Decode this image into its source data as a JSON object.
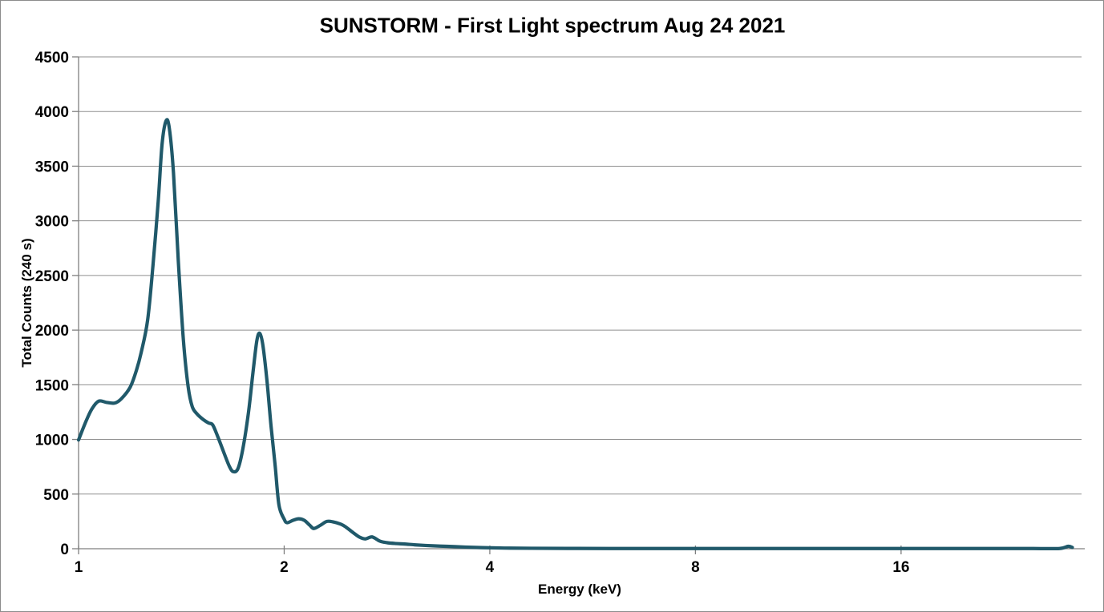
{
  "window": {
    "background": "#ffffff",
    "border_color": "#8c8c8c"
  },
  "chart_data": {
    "type": "line",
    "title": "SUNSTORM - First Light spectrum Aug 24 2021",
    "xlabel": "Energy (keV)",
    "ylabel": "Total Counts (240 s)",
    "x_scale": "log2",
    "x_ticks": [
      1,
      2,
      4,
      8,
      16
    ],
    "xlim": [
      1,
      29.4
    ],
    "ylim": [
      0,
      4500
    ],
    "y_tick_step": 500,
    "grid": "horizontal-major",
    "legend": "none",
    "colors": {
      "line": "#20596a",
      "gridline": "#8f8f8f",
      "axis": "#7f7f7f",
      "text": "#000000"
    },
    "series": [
      {
        "name": "Total counts",
        "points": [
          [
            1.0,
            995
          ],
          [
            1.022,
            1145
          ],
          [
            1.045,
            1275
          ],
          [
            1.07,
            1350
          ],
          [
            1.1,
            1338
          ],
          [
            1.13,
            1333
          ],
          [
            1.155,
            1372
          ],
          [
            1.19,
            1478
          ],
          [
            1.215,
            1630
          ],
          [
            1.235,
            1795
          ],
          [
            1.262,
            2090
          ],
          [
            1.285,
            2590
          ],
          [
            1.308,
            3180
          ],
          [
            1.325,
            3700
          ],
          [
            1.343,
            3915
          ],
          [
            1.358,
            3845
          ],
          [
            1.377,
            3440
          ],
          [
            1.4,
            2620
          ],
          [
            1.424,
            1905
          ],
          [
            1.447,
            1480
          ],
          [
            1.467,
            1300
          ],
          [
            1.49,
            1235
          ],
          [
            1.52,
            1185
          ],
          [
            1.55,
            1150
          ],
          [
            1.572,
            1132
          ],
          [
            1.6,
            1020
          ],
          [
            1.633,
            875
          ],
          [
            1.663,
            752
          ],
          [
            1.685,
            705
          ],
          [
            1.712,
            735
          ],
          [
            1.74,
            915
          ],
          [
            1.773,
            1245
          ],
          [
            1.8,
            1610
          ],
          [
            1.824,
            1905
          ],
          [
            1.842,
            1970
          ],
          [
            1.862,
            1855
          ],
          [
            1.888,
            1525
          ],
          [
            1.913,
            1125
          ],
          [
            1.94,
            760
          ],
          [
            1.965,
            400
          ],
          [
            2.0,
            270
          ],
          [
            2.02,
            238
          ],
          [
            2.06,
            260
          ],
          [
            2.1,
            274
          ],
          [
            2.14,
            260
          ],
          [
            2.18,
            215
          ],
          [
            2.21,
            185
          ],
          [
            2.26,
            215
          ],
          [
            2.31,
            250
          ],
          [
            2.36,
            245
          ],
          [
            2.42,
            225
          ],
          [
            2.46,
            200
          ],
          [
            2.52,
            150
          ],
          [
            2.58,
            105
          ],
          [
            2.63,
            90
          ],
          [
            2.69,
            108
          ],
          [
            2.76,
            70
          ],
          [
            2.83,
            55
          ],
          [
            2.92,
            47
          ],
          [
            3.0,
            43
          ],
          [
            3.1,
            36
          ],
          [
            3.22,
            30
          ],
          [
            3.38,
            24
          ],
          [
            3.52,
            20
          ],
          [
            3.68,
            15
          ],
          [
            3.9,
            10
          ],
          [
            4.2,
            6
          ],
          [
            4.6,
            4
          ],
          [
            5.2,
            3
          ],
          [
            6.0,
            2
          ],
          [
            7.5,
            2
          ],
          [
            9.0,
            2
          ],
          [
            11.0,
            2
          ],
          [
            13.5,
            2
          ],
          [
            16.0,
            2
          ],
          [
            19.0,
            2
          ],
          [
            22.0,
            2
          ],
          [
            25.0,
            2
          ],
          [
            27.3,
            2
          ],
          [
            28.1,
            22
          ],
          [
            28.5,
            12
          ]
        ]
      }
    ]
  }
}
